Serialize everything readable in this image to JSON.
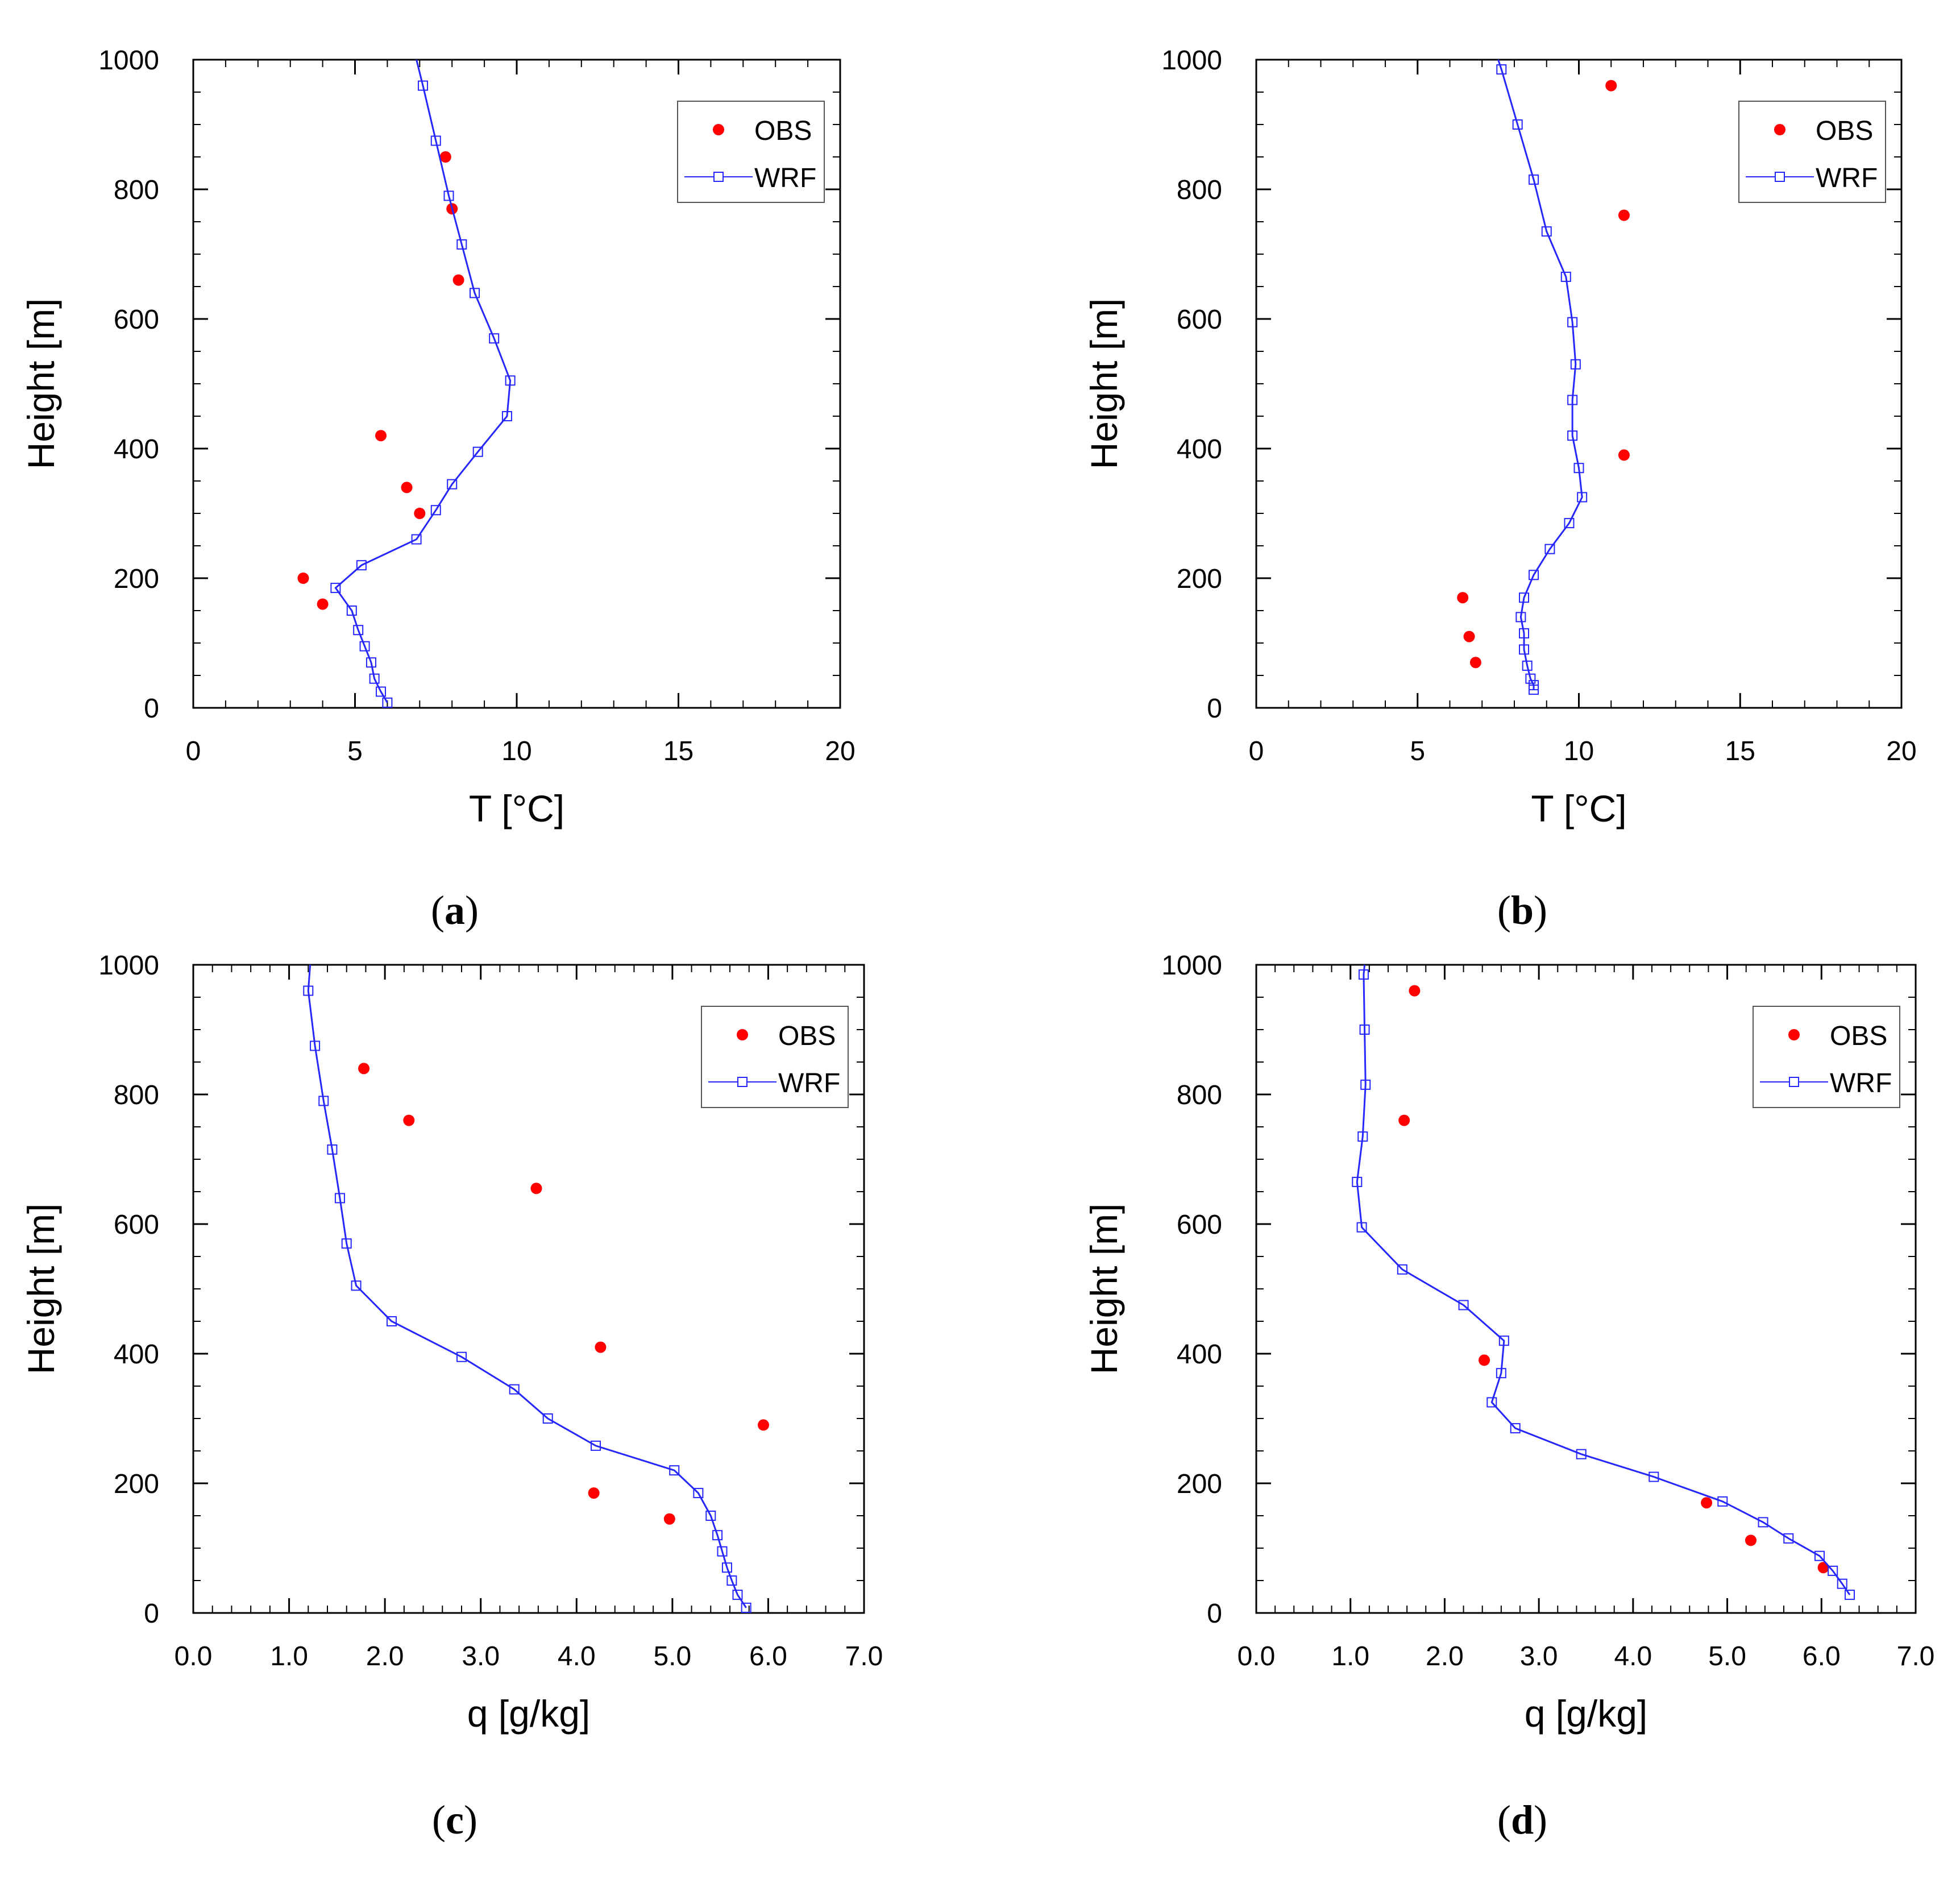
{
  "colors": {
    "obs": "#ff0000",
    "wrf": "#2626ff",
    "axis": "#000000"
  },
  "legend": {
    "obs_label": "OBS",
    "wrf_label": "WRF"
  },
  "chart_data": [
    {
      "id": "a",
      "panel_label_letter": "a",
      "type": "scatter+line",
      "xlabel": "T [°C]",
      "ylabel": "Height [m]",
      "xlim": [
        0,
        20
      ],
      "ylim": [
        0,
        1000
      ],
      "xticks": [
        0,
        5,
        10,
        15,
        20
      ],
      "xtick_labels": [
        "0",
        "5",
        "10",
        "15",
        "20"
      ],
      "yticks": [
        0,
        200,
        400,
        600,
        800,
        1000
      ],
      "ytick_labels": [
        "0",
        "200",
        "400",
        "600",
        "800",
        "1000"
      ],
      "legend_position": "top-right",
      "series": [
        {
          "name": "OBS",
          "kind": "scatter",
          "x": [
            7.8,
            8.0,
            8.2,
            5.8,
            6.6,
            7.0,
            3.4,
            4.0
          ],
          "y": [
            850,
            770,
            660,
            420,
            340,
            300,
            200,
            160
          ]
        },
        {
          "name": "WRF",
          "kind": "line",
          "x": [
            6.9,
            7.1,
            7.5,
            7.9,
            8.3,
            8.7,
            9.3,
            9.8,
            9.7,
            8.8,
            8.0,
            7.5,
            6.9,
            5.2,
            4.4,
            4.9,
            5.1,
            5.3,
            5.5,
            5.6,
            5.8,
            6.0
          ],
          "y": [
            1000,
            960,
            875,
            790,
            715,
            640,
            570,
            505,
            450,
            395,
            345,
            305,
            260,
            220,
            185,
            150,
            120,
            95,
            70,
            45,
            25,
            8
          ]
        }
      ]
    },
    {
      "id": "b",
      "panel_label_letter": "b",
      "type": "scatter+line",
      "xlabel": "T [°C]",
      "ylabel": "Height [m]",
      "xlim": [
        0,
        20
      ],
      "ylim": [
        0,
        1000
      ],
      "xticks": [
        0,
        5,
        10,
        15,
        20
      ],
      "xtick_labels": [
        "0",
        "5",
        "10",
        "15",
        "20"
      ],
      "yticks": [
        0,
        200,
        400,
        600,
        800,
        1000
      ],
      "ytick_labels": [
        "0",
        "200",
        "400",
        "600",
        "800",
        "1000"
      ],
      "legend_position": "top-right",
      "series": [
        {
          "name": "OBS",
          "kind": "scatter",
          "x": [
            11.0,
            11.4,
            11.4,
            6.4,
            6.6,
            6.8
          ],
          "y": [
            960,
            760,
            390,
            170,
            110,
            70
          ]
        },
        {
          "name": "WRF",
          "kind": "line",
          "x": [
            7.5,
            7.6,
            8.1,
            8.6,
            9.0,
            9.6,
            9.8,
            9.9,
            9.8,
            9.8,
            10.0,
            10.1,
            9.7,
            9.1,
            8.6,
            8.3,
            8.2,
            8.3,
            8.3,
            8.4,
            8.5,
            8.6,
            8.6
          ],
          "y": [
            1000,
            985,
            900,
            815,
            735,
            665,
            595,
            530,
            475,
            420,
            370,
            325,
            285,
            245,
            205,
            170,
            140,
            115,
            90,
            65,
            45,
            35,
            28
          ]
        }
      ]
    },
    {
      "id": "c",
      "panel_label_letter": "c",
      "type": "scatter+line",
      "xlabel": "q [g/kg]",
      "ylabel": "Height [m]",
      "xlim": [
        0,
        7
      ],
      "ylim": [
        0,
        1000
      ],
      "xticks": [
        0,
        1,
        2,
        3,
        4,
        5,
        6,
        7
      ],
      "xtick_labels": [
        "0.0",
        "1.0",
        "2.0",
        "3.0",
        "4.0",
        "5.0",
        "6.0",
        "7.0"
      ],
      "yticks": [
        0,
        200,
        400,
        600,
        800,
        1000
      ],
      "ytick_labels": [
        "0",
        "200",
        "400",
        "600",
        "800",
        "1000"
      ],
      "legend_position": "top-right",
      "series": [
        {
          "name": "OBS",
          "kind": "scatter",
          "x": [
            1.78,
            2.25,
            3.58,
            4.25,
            5.95,
            4.18,
            4.97
          ],
          "y": [
            840,
            760,
            655,
            410,
            290,
            185,
            145
          ]
        },
        {
          "name": "WRF",
          "kind": "line",
          "x": [
            1.22,
            1.2,
            1.27,
            1.36,
            1.45,
            1.53,
            1.6,
            1.7,
            2.07,
            2.8,
            3.35,
            3.7,
            4.2,
            5.02,
            5.27,
            5.4,
            5.47,
            5.52,
            5.57,
            5.62,
            5.68,
            5.77
          ],
          "y": [
            1000,
            960,
            875,
            790,
            715,
            640,
            570,
            505,
            450,
            395,
            345,
            300,
            258,
            220,
            185,
            150,
            120,
            95,
            70,
            50,
            28,
            8
          ]
        }
      ]
    },
    {
      "id": "d",
      "panel_label_letter": "d",
      "type": "scatter+line",
      "xlabel": "q [g/kg]",
      "ylabel": "Height [m]",
      "xlim": [
        0,
        7
      ],
      "ylim": [
        0,
        1000
      ],
      "xticks": [
        0,
        1,
        2,
        3,
        4,
        5,
        6,
        7
      ],
      "xtick_labels": [
        "0.0",
        "1.0",
        "2.0",
        "3.0",
        "4.0",
        "5.0",
        "6.0",
        "7.0"
      ],
      "yticks": [
        0,
        200,
        400,
        600,
        800,
        1000
      ],
      "ytick_labels": [
        "0",
        "200",
        "400",
        "600",
        "800",
        "1000"
      ],
      "legend_position": "top-right",
      "series": [
        {
          "name": "OBS",
          "kind": "scatter",
          "x": [
            1.68,
            1.57,
            2.42,
            4.78,
            5.25,
            6.02
          ],
          "y": [
            960,
            760,
            390,
            170,
            112,
            70
          ]
        },
        {
          "name": "WRF",
          "kind": "line",
          "x": [
            1.15,
            1.14,
            1.15,
            1.16,
            1.13,
            1.07,
            1.12,
            1.55,
            2.2,
            2.63,
            2.6,
            2.5,
            2.75,
            3.45,
            4.22,
            4.95,
            5.38,
            5.65,
            5.98,
            6.12,
            6.22,
            6.3
          ],
          "y": [
            1000,
            985,
            900,
            815,
            735,
            665,
            595,
            530,
            475,
            420,
            370,
            325,
            285,
            245,
            210,
            172,
            140,
            115,
            88,
            65,
            45,
            28
          ]
        }
      ]
    }
  ]
}
